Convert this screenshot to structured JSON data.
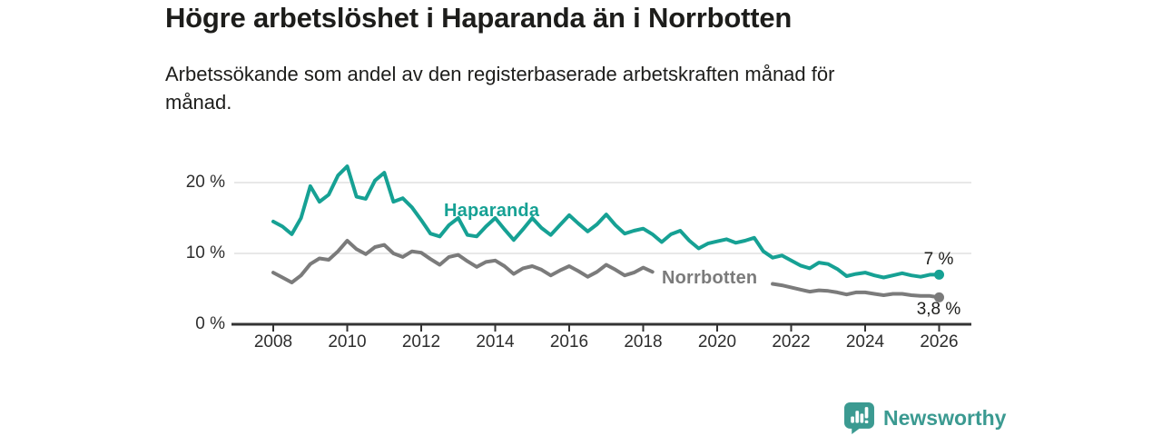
{
  "chart_data": {
    "type": "line",
    "title": "Högre arbetslöshet i Haparanda än i Norrbotten",
    "subtitle": "Arbetssökande som andel av den registerbaserade arbetskraften månad för månad.",
    "x_unit": "decimal_year",
    "grid": "horizontal",
    "legend": "inline-labels",
    "xlim": [
      2006.9,
      2026.9
    ],
    "ylim": [
      0,
      23.7
    ],
    "xticks": [
      2008,
      2010,
      2012,
      2014,
      2016,
      2018,
      2020,
      2022,
      2024,
      2026
    ],
    "yticks": [
      {
        "value": 0,
        "label": "0 %"
      },
      {
        "value": 10,
        "label": "10 %"
      },
      {
        "value": 20,
        "label": "20 %"
      }
    ],
    "x": [
      2008,
      2008.25,
      2008.5,
      2008.75,
      2009,
      2009.25,
      2009.5,
      2009.75,
      2010,
      2010.25,
      2010.5,
      2010.75,
      2011,
      2011.25,
      2011.5,
      2011.75,
      2012,
      2012.25,
      2012.5,
      2012.75,
      2013,
      2013.25,
      2013.5,
      2013.75,
      2014,
      2014.25,
      2014.5,
      2014.75,
      2015,
      2015.25,
      2015.5,
      2015.75,
      2016,
      2016.25,
      2016.5,
      2016.75,
      2017,
      2017.25,
      2017.5,
      2017.75,
      2018,
      2018.25,
      2018.5,
      2018.75,
      2019,
      2019.25,
      2019.5,
      2019.75,
      2020,
      2020.25,
      2020.5,
      2020.75,
      2021,
      2021.25,
      2021.5,
      2021.75,
      2022,
      2022.25,
      2022.5,
      2022.75,
      2023,
      2023.25,
      2023.5,
      2023.75,
      2024,
      2024.25,
      2024.5,
      2024.75,
      2025,
      2025.25,
      2025.5,
      2025.75,
      2026
    ],
    "series": [
      {
        "name": "Haparanda",
        "inline_label": "Haparanda",
        "color": "#16a194",
        "end_label": "7 %",
        "end_value": 7.0,
        "values": [
          14.5,
          13.8,
          12.7,
          15.0,
          19.5,
          17.3,
          18.3,
          21.0,
          22.3,
          18.0,
          17.7,
          20.3,
          21.4,
          17.3,
          17.8,
          16.5,
          14.7,
          12.8,
          12.4,
          14.0,
          15.0,
          12.6,
          12.4,
          13.8,
          15.0,
          13.4,
          11.9,
          13.4,
          15.0,
          13.6,
          12.6,
          14.0,
          15.4,
          14.2,
          13.1,
          14.1,
          15.5,
          14.0,
          12.8,
          13.2,
          13.5,
          12.7,
          11.6,
          12.7,
          13.2,
          11.8,
          10.7,
          11.4,
          11.7,
          12.0,
          11.5,
          11.8,
          12.2,
          10.3,
          9.4,
          9.7,
          9.0,
          8.3,
          7.9,
          8.7,
          8.5,
          7.8,
          6.8,
          7.1,
          7.3,
          6.9,
          6.6,
          6.9,
          7.2,
          6.9,
          6.7,
          7.0,
          7.0
        ]
      },
      {
        "name": "Norrbotten",
        "inline_label": "Norrbotten",
        "color": "#7b7b7b",
        "end_label": "3,8 %",
        "end_value": 3.8,
        "label_gap_x": [
          2018.3,
          2021.45
        ],
        "values": [
          7.3,
          6.6,
          5.9,
          6.9,
          8.5,
          9.3,
          9.1,
          10.3,
          11.8,
          10.6,
          9.9,
          10.9,
          11.2,
          10.0,
          9.5,
          10.3,
          10.1,
          9.2,
          8.4,
          9.5,
          9.8,
          8.9,
          8.1,
          8.8,
          9.0,
          8.2,
          7.1,
          7.9,
          8.2,
          7.7,
          6.9,
          7.6,
          8.2,
          7.5,
          6.7,
          7.4,
          8.4,
          7.7,
          6.9,
          7.3,
          8.0,
          7.4,
          6.4,
          7.0,
          7.2,
          6.7,
          6.1,
          6.5,
          6.7,
          6.4,
          6.1,
          6.3,
          6.4,
          6.1,
          5.7,
          5.5,
          5.2,
          4.9,
          4.6,
          4.8,
          4.7,
          4.5,
          4.2,
          4.5,
          4.5,
          4.3,
          4.1,
          4.3,
          4.3,
          4.1,
          4.0,
          4.0,
          3.8
        ]
      }
    ]
  },
  "colors": {
    "haparanda": "#16a194",
    "norrbotten": "#7b7b7b",
    "axis": "#333333",
    "grid": "#e1e1e1",
    "text": "#1d1d1b",
    "brand": "#3b9a91"
  },
  "footer": {
    "brand": "Newsworthy",
    "logo_icon": "speech-bubble-bar-chart"
  }
}
